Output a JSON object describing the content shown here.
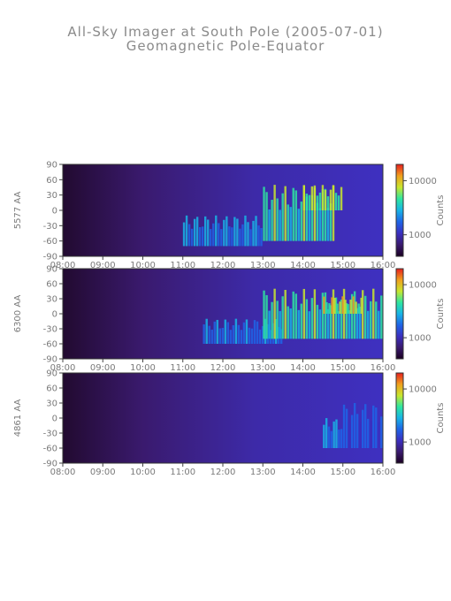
{
  "title": "All-Sky Imager at South Pole (2005-07-01)",
  "subtitle": "Geomagnetic Pole-Equator",
  "chart_data": [
    {
      "type": "heatmap",
      "ylabel": "5577 AA",
      "x_ticks": [
        "08:00",
        "09:00",
        "10:00",
        "11:00",
        "12:00",
        "13:00",
        "14:00",
        "15:00",
        "16:00"
      ],
      "y_ticks": [
        90,
        60,
        30,
        0,
        -30,
        -60,
        -90
      ],
      "ylim": [
        -90,
        90
      ],
      "xlim": [
        "08:00",
        "16:00"
      ],
      "colorbar": {
        "label": "Counts",
        "ticks": [
          10000,
          1000
        ],
        "tick_labels": [
          "10000",
          "1000"
        ],
        "scale": "log"
      },
      "cmap": [
        "#1a0022",
        "#3a1a6e",
        "#3b2fbf",
        "#1e64e6",
        "#18b4e6",
        "#2ee6a0",
        "#c8e62e",
        "#f0a01e",
        "#e61e1e"
      ],
      "features": [
        {
          "x": [
            11.0,
            13.0
          ],
          "lat": [
            -70,
            -10
          ],
          "level": 0.5
        },
        {
          "x": [
            13.0,
            14.8
          ],
          "lat": [
            -60,
            50
          ],
          "level": 0.7
        },
        {
          "x": [
            14.0,
            15.0
          ],
          "lat": [
            0,
            50
          ],
          "level": 0.8
        }
      ]
    },
    {
      "type": "heatmap",
      "ylabel": "6300 AA",
      "x_ticks": [
        "08:00",
        "09:00",
        "10:00",
        "11:00",
        "12:00",
        "13:00",
        "14:00",
        "15:00",
        "16:00"
      ],
      "y_ticks": [
        90,
        60,
        30,
        0,
        -30,
        -60,
        -90
      ],
      "ylim": [
        -90,
        90
      ],
      "xlim": [
        "08:00",
        "16:00"
      ],
      "colorbar": {
        "label": "Counts",
        "ticks": [
          10000,
          1000
        ],
        "tick_labels": [
          "10000",
          "1000"
        ],
        "scale": "log"
      },
      "cmap": [
        "#1a0022",
        "#3a1a6e",
        "#3b2fbf",
        "#1e64e6",
        "#18b4e6",
        "#2ee6a0",
        "#c8e62e",
        "#f0a01e",
        "#e61e1e"
      ],
      "features": [
        {
          "x": [
            11.5,
            13.5
          ],
          "lat": [
            -60,
            -10
          ],
          "level": 0.45
        },
        {
          "x": [
            13.0,
            16.0
          ],
          "lat": [
            -50,
            50
          ],
          "level": 0.7
        },
        {
          "x": [
            14.5,
            15.5
          ],
          "lat": [
            0,
            35
          ],
          "level": 0.85
        }
      ]
    },
    {
      "type": "heatmap",
      "ylabel": "4861 AA",
      "x_ticks": [
        "08:00",
        "09:00",
        "10:00",
        "11:00",
        "12:00",
        "13:00",
        "14:00",
        "15:00",
        "16:00"
      ],
      "y_ticks": [
        90,
        60,
        30,
        0,
        -30,
        -60,
        -90
      ],
      "ylim": [
        -90,
        90
      ],
      "xlim": [
        "08:00",
        "16:00"
      ],
      "colorbar": {
        "label": "Counts",
        "ticks": [
          10000,
          1000
        ],
        "tick_labels": [
          "10000",
          "1000"
        ],
        "scale": "log"
      },
      "cmap": [
        "#1a0022",
        "#3a1a6e",
        "#3b2fbf",
        "#1e64e6",
        "#18b4e6",
        "#2ee6a0",
        "#c8e62e",
        "#f0a01e",
        "#e61e1e"
      ],
      "features": [
        {
          "x": [
            14.5,
            15.0
          ],
          "lat": [
            -60,
            0
          ],
          "level": 0.5
        },
        {
          "x": [
            15.0,
            16.0
          ],
          "lat": [
            -60,
            30
          ],
          "level": 0.4
        }
      ]
    }
  ]
}
